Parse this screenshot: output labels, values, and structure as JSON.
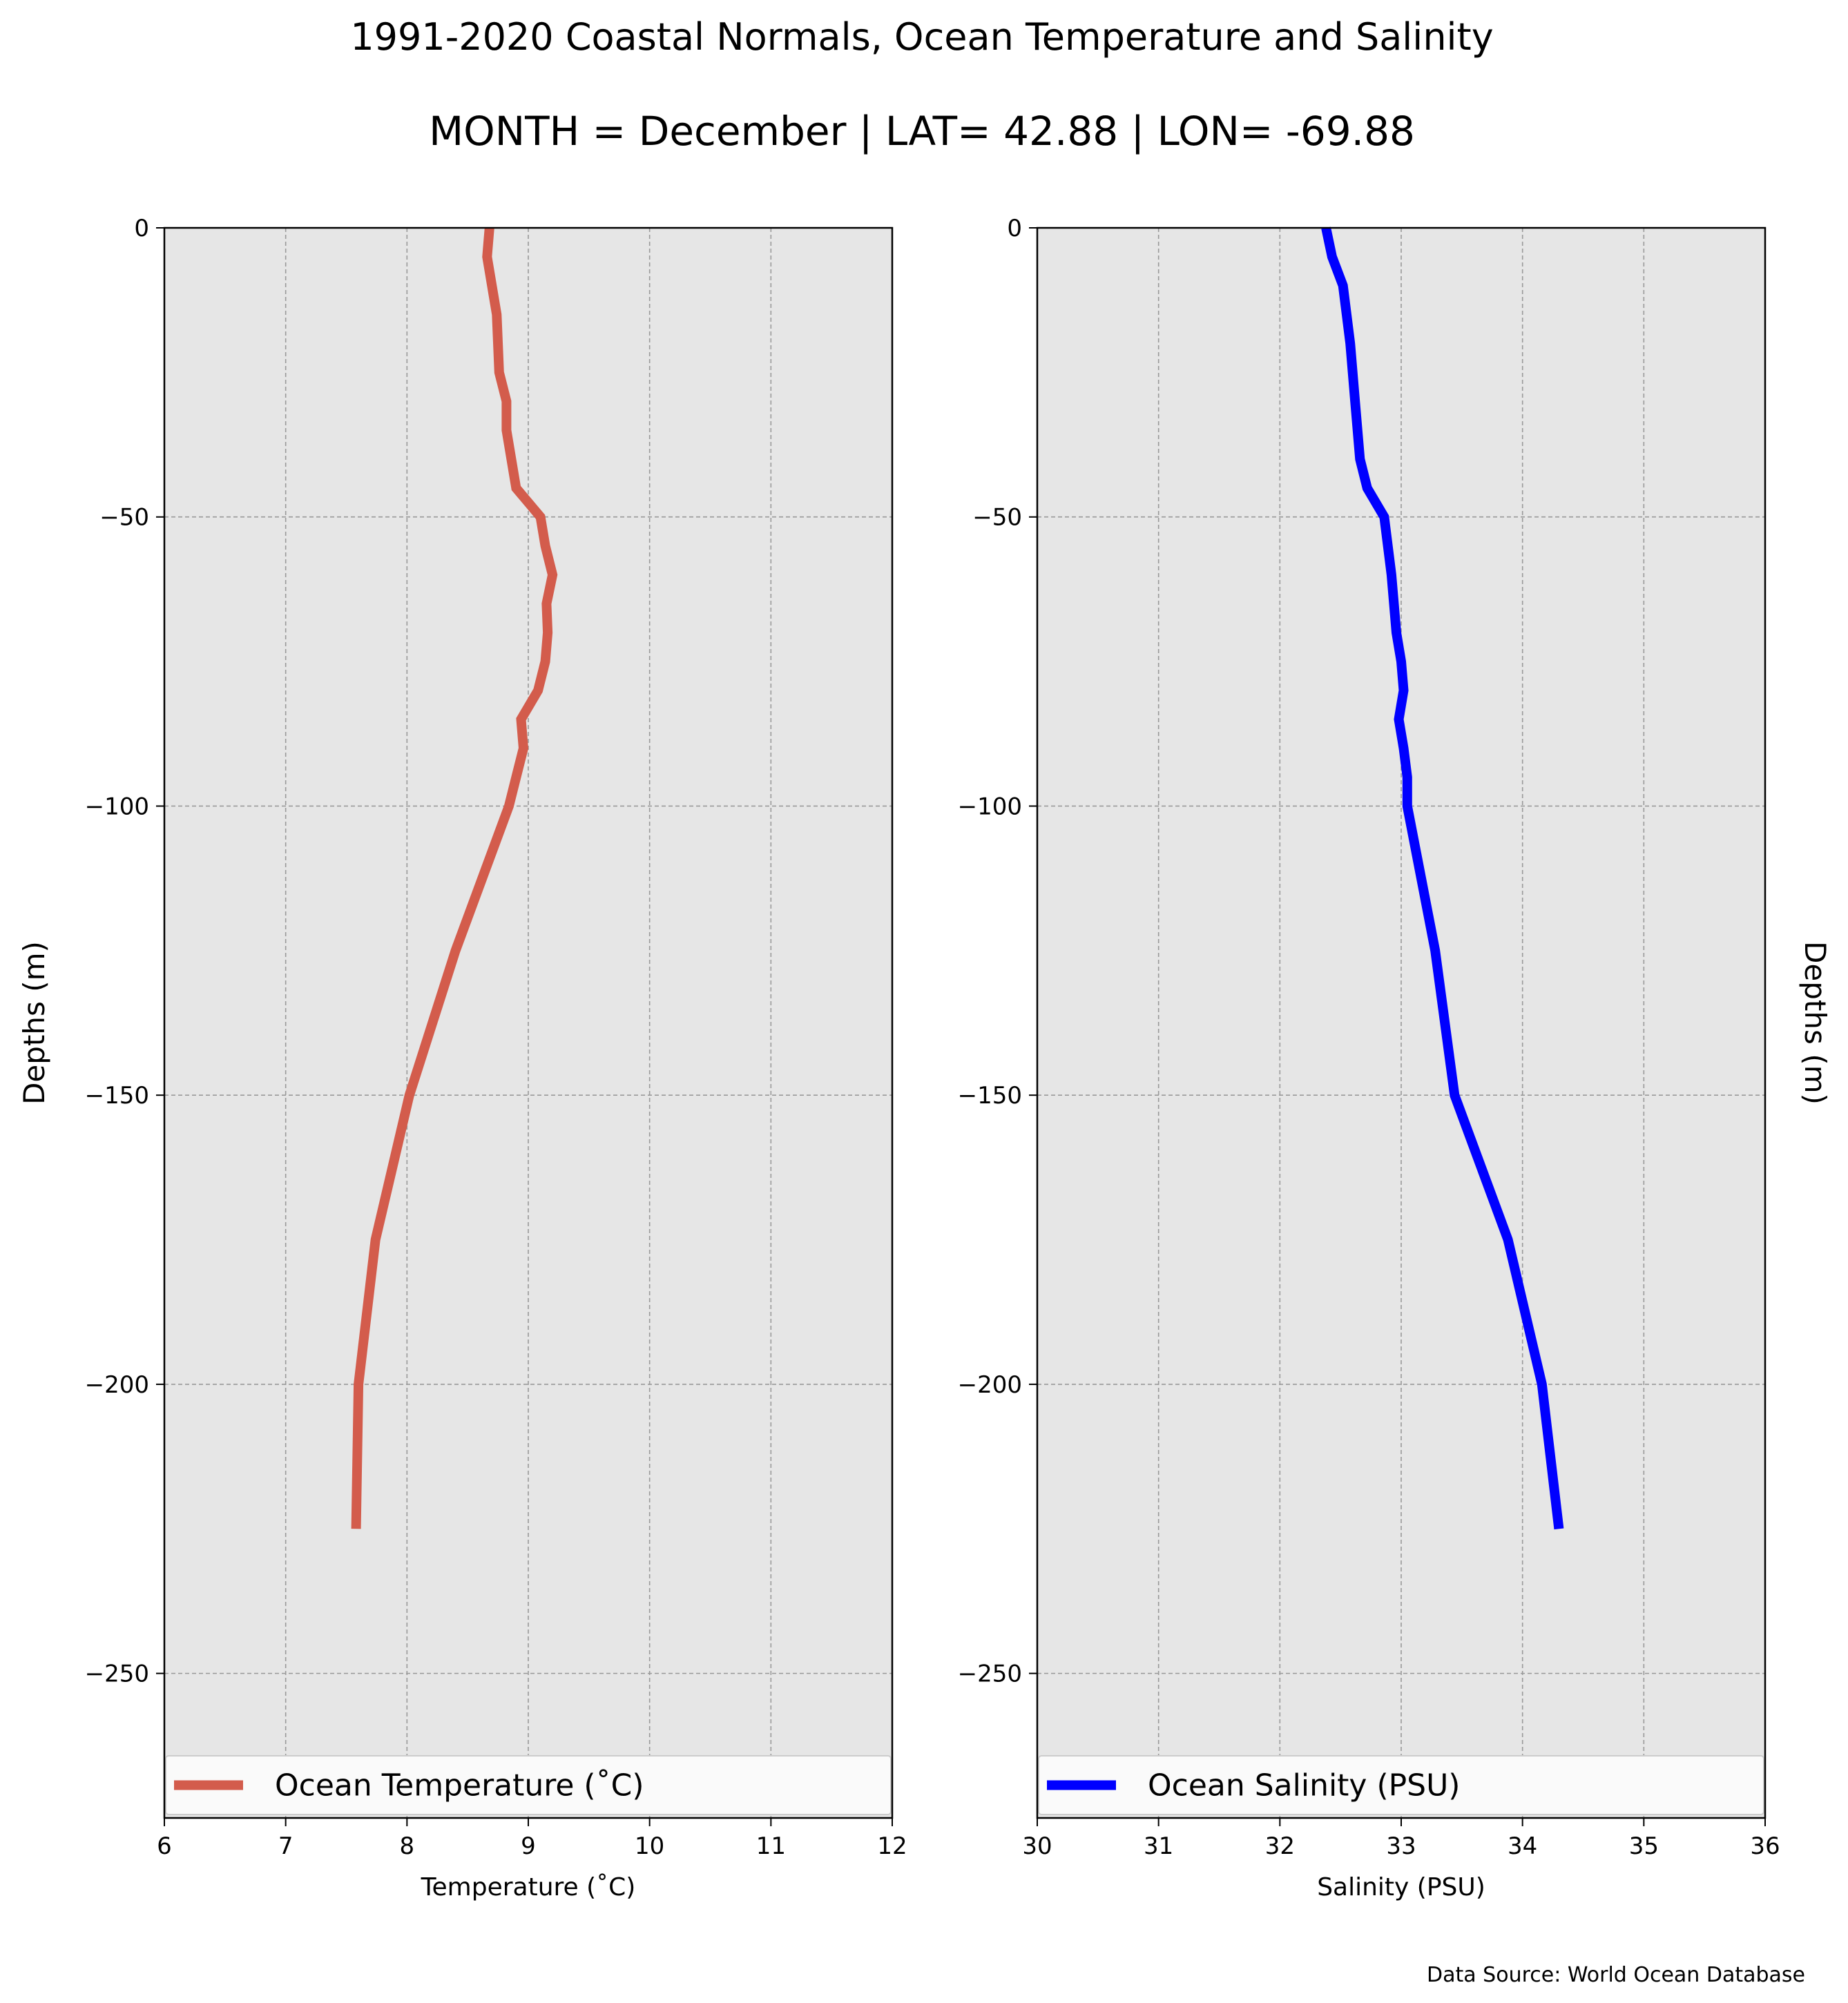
{
  "title": "1991-2020 Coastal Normals, Ocean Temperature and Salinity",
  "subtitle": "MONTH = December | LAT= 42.88 | LON= -69.88",
  "source_note": "Data Source: World Ocean Database",
  "colors": {
    "temperature": "#d35c4c",
    "salinity": "#0000ff",
    "axes_bg": "#e6e6e6",
    "grid": "#999999"
  },
  "chart_data": [
    {
      "type": "line",
      "xlabel": "Temperature ($^\\circ$C)",
      "xlabel_display": "Temperature (˚C)",
      "ylabel": "Depths (m)",
      "xlim": [
        6,
        12
      ],
      "ylim": [
        -275,
        0
      ],
      "xticks": [
        6,
        7,
        8,
        9,
        10,
        11,
        12
      ],
      "yticks": [
        0,
        -50,
        -100,
        -150,
        -200,
        -250
      ],
      "grid": true,
      "legend_position": "lower center",
      "series": [
        {
          "name": "Ocean Temperature (˚C)",
          "color": "#d35c4c",
          "points": [
            [
              8.68,
              0
            ],
            [
              8.66,
              -5
            ],
            [
              8.74,
              -15
            ],
            [
              8.76,
              -25
            ],
            [
              8.82,
              -30
            ],
            [
              8.82,
              -35
            ],
            [
              8.9,
              -45
            ],
            [
              9.1,
              -50
            ],
            [
              9.14,
              -55
            ],
            [
              9.2,
              -60
            ],
            [
              9.15,
              -65
            ],
            [
              9.16,
              -70
            ],
            [
              9.14,
              -75
            ],
            [
              9.08,
              -80
            ],
            [
              8.94,
              -85
            ],
            [
              8.96,
              -90
            ],
            [
              8.9,
              -95
            ],
            [
              8.84,
              -100
            ],
            [
              8.4,
              -125
            ],
            [
              8.02,
              -150
            ],
            [
              7.74,
              -175
            ],
            [
              7.6,
              -200
            ],
            [
              7.58,
              -225
            ]
          ]
        }
      ]
    },
    {
      "type": "line",
      "xlabel": "Salinity (PSU)",
      "ylabel": "Depths (m)",
      "xlim": [
        30,
        36
      ],
      "ylim": [
        -275,
        0
      ],
      "xticks": [
        30,
        31,
        32,
        33,
        34,
        35,
        36
      ],
      "yticks": [
        0,
        -50,
        -100,
        -150,
        -200,
        -250
      ],
      "grid": true,
      "legend_position": "lower center",
      "series": [
        {
          "name": "Ocean Salinity (PSU)",
          "color": "#0000ff",
          "points": [
            [
              32.38,
              0
            ],
            [
              32.43,
              -5
            ],
            [
              32.52,
              -10
            ],
            [
              32.58,
              -20
            ],
            [
              32.62,
              -30
            ],
            [
              32.66,
              -40
            ],
            [
              32.72,
              -45
            ],
            [
              32.86,
              -50
            ],
            [
              32.92,
              -60
            ],
            [
              32.96,
              -70
            ],
            [
              33.0,
              -75
            ],
            [
              33.02,
              -80
            ],
            [
              32.98,
              -85
            ],
            [
              33.02,
              -90
            ],
            [
              33.05,
              -95
            ],
            [
              33.05,
              -100
            ],
            [
              33.28,
              -125
            ],
            [
              33.44,
              -150
            ],
            [
              33.88,
              -175
            ],
            [
              34.16,
              -200
            ],
            [
              34.3,
              -225
            ]
          ]
        }
      ]
    }
  ]
}
